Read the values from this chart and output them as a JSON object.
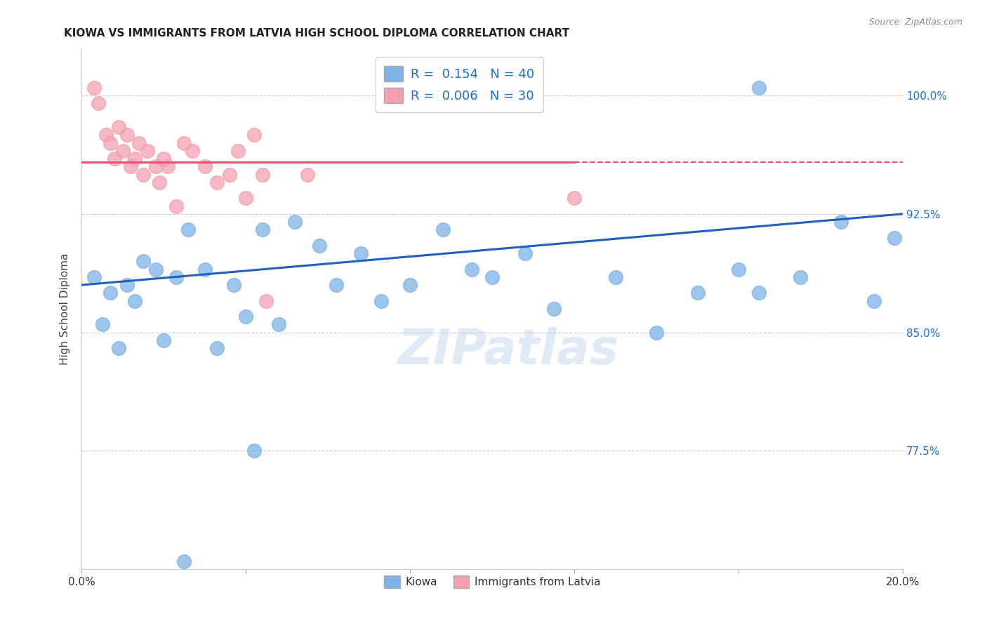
{
  "title": "KIOWA VS IMMIGRANTS FROM LATVIA HIGH SCHOOL DIPLOMA CORRELATION CHART",
  "source": "Source: ZipAtlas.com",
  "ylabel": "High School Diploma",
  "xlim": [
    0.0,
    0.2
  ],
  "ylim": [
    70.0,
    103.0
  ],
  "yticks": [
    77.5,
    85.0,
    92.5,
    100.0
  ],
  "ytick_labels": [
    "77.5%",
    "85.0%",
    "92.5%",
    "100.0%"
  ],
  "xticks": [
    0.0,
    0.04,
    0.08,
    0.12,
    0.16,
    0.2
  ],
  "xtick_labels": [
    "0.0%",
    "",
    "",
    "",
    "",
    "20.0%"
  ],
  "legend_r1": "R =  0.154   N = 40",
  "legend_r2": "R =  0.006   N = 30",
  "kiowa_color": "#7eb3e8",
  "latvia_color": "#f4a0b0",
  "trendline_blue_color": "#2060c0",
  "trendline_pink_color": "#e05878",
  "trendline_blue_y0": 88.0,
  "trendline_blue_y1": 92.5,
  "trendline_pink_y": 95.8,
  "watermark": "ZIPatlas",
  "watermark_color": "#c8d8f0",
  "grid_color": "#cccccc",
  "right_tick_color": "#1a6fd4",
  "kiowa_x": [
    0.003,
    0.005,
    0.007,
    0.009,
    0.011,
    0.013,
    0.015,
    0.018,
    0.02,
    0.023,
    0.026,
    0.03,
    0.033,
    0.037,
    0.04,
    0.044,
    0.048,
    0.052,
    0.058,
    0.062,
    0.068,
    0.073,
    0.08,
    0.088,
    0.095,
    0.1,
    0.108,
    0.115,
    0.13,
    0.14,
    0.15,
    0.16,
    0.165,
    0.175,
    0.185,
    0.193,
    0.198,
    0.165,
    0.042,
    0.025
  ],
  "kiowa_y": [
    88.5,
    85.5,
    87.5,
    84.0,
    88.0,
    87.0,
    89.5,
    89.0,
    84.5,
    88.5,
    91.5,
    89.0,
    84.0,
    88.0,
    86.0,
    91.5,
    85.5,
    92.0,
    90.5,
    88.0,
    90.0,
    87.0,
    88.0,
    91.5,
    89.0,
    88.5,
    90.0,
    86.5,
    88.5,
    85.0,
    87.5,
    89.0,
    87.5,
    88.5,
    92.0,
    87.0,
    91.0,
    100.5,
    77.5,
    70.5
  ],
  "latvia_x": [
    0.003,
    0.004,
    0.006,
    0.007,
    0.008,
    0.009,
    0.01,
    0.011,
    0.012,
    0.013,
    0.014,
    0.015,
    0.016,
    0.018,
    0.019,
    0.02,
    0.021,
    0.023,
    0.025,
    0.027,
    0.03,
    0.033,
    0.036,
    0.038,
    0.04,
    0.042,
    0.044,
    0.055,
    0.12,
    0.045
  ],
  "latvia_y": [
    100.5,
    99.5,
    97.5,
    97.0,
    96.0,
    98.0,
    96.5,
    97.5,
    95.5,
    96.0,
    97.0,
    95.0,
    96.5,
    95.5,
    94.5,
    96.0,
    95.5,
    93.0,
    97.0,
    96.5,
    95.5,
    94.5,
    95.0,
    96.5,
    93.5,
    97.5,
    95.0,
    95.0,
    93.5,
    87.0
  ],
  "title_fontsize": 11,
  "source_fontsize": 9,
  "tick_fontsize": 11,
  "ylabel_fontsize": 11
}
